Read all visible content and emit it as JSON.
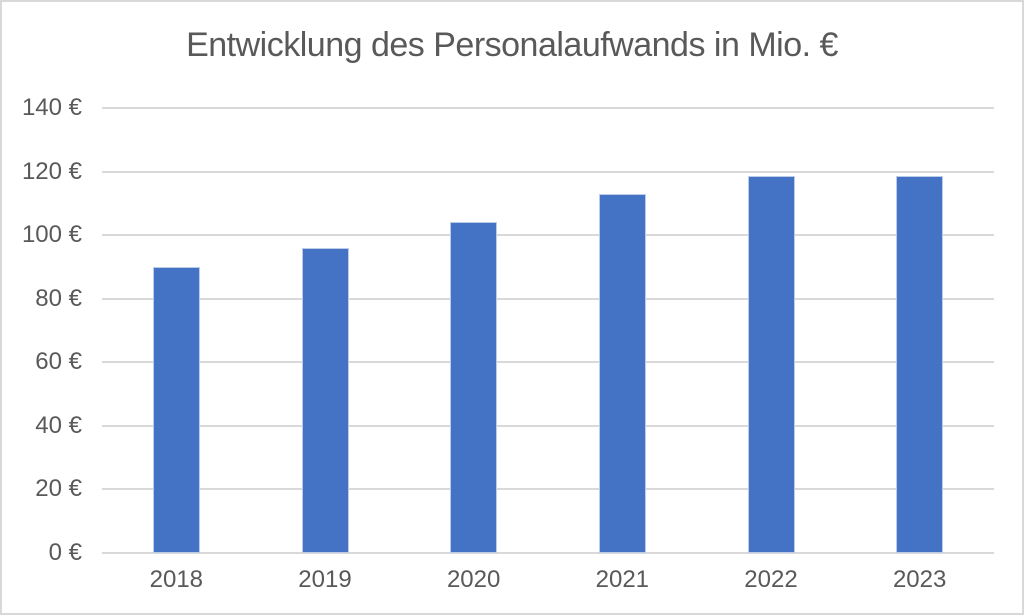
{
  "chart_data": {
    "type": "bar",
    "title": "Entwicklung des Personalaufwands in Mio. €",
    "categories": [
      "2018",
      "2019",
      "2020",
      "2021",
      "2022",
      "2023"
    ],
    "values": [
      90,
      96,
      104,
      113,
      118.5,
      118.5
    ],
    "xlabel": "",
    "ylabel": "",
    "ylim": [
      0,
      140
    ],
    "y_ticks": [
      0,
      20,
      40,
      60,
      80,
      100,
      120,
      140
    ],
    "y_tick_labels": [
      "0 €",
      "20 €",
      "40 €",
      "60 €",
      "80 €",
      "100 €",
      "120 €",
      "140 €"
    ],
    "grid": true,
    "legend": false,
    "colors": {
      "bar_fill": "#4472C4",
      "bar_border": "#BCCCE8",
      "gridline": "#D9D9D9",
      "text": "#595959",
      "frame_border": "#D9D9D9",
      "background": "#FFFFFF"
    }
  }
}
